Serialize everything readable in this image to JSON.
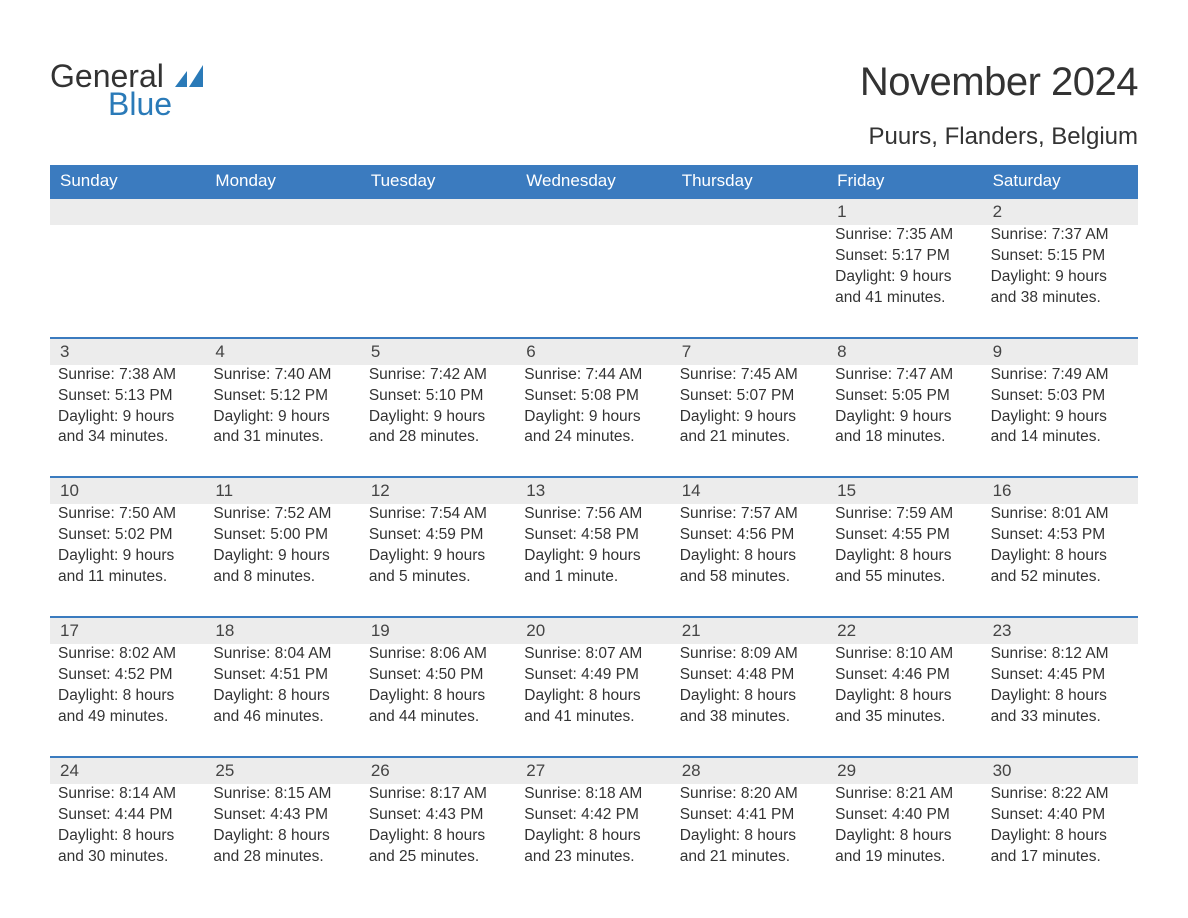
{
  "logo": {
    "text_top": "General",
    "text_bottom": "Blue",
    "icon_color": "#2a7ab8"
  },
  "title": "November 2024",
  "location": "Puurs, Flanders, Belgium",
  "colors": {
    "header_bg": "#3b7bbf",
    "header_text": "#ffffff",
    "daynum_bg": "#ececec",
    "daynum_border": "#3b7bbf",
    "body_text": "#333333",
    "logo_blue": "#2a7ab8",
    "page_bg": "#ffffff"
  },
  "typography": {
    "title_fontsize": 40,
    "location_fontsize": 24,
    "dayheader_fontsize": 17,
    "body_fontsize": 15.5,
    "font_family": "Arial"
  },
  "day_names": [
    "Sunday",
    "Monday",
    "Tuesday",
    "Wednesday",
    "Thursday",
    "Friday",
    "Saturday"
  ],
  "weeks": [
    {
      "numbers": [
        "",
        "",
        "",
        "",
        "",
        "1",
        "2"
      ],
      "cells": [
        null,
        null,
        null,
        null,
        null,
        {
          "sunrise": "Sunrise: 7:35 AM",
          "sunset": "Sunset: 5:17 PM",
          "daylight": "Daylight: 9 hours and 41 minutes."
        },
        {
          "sunrise": "Sunrise: 7:37 AM",
          "sunset": "Sunset: 5:15 PM",
          "daylight": "Daylight: 9 hours and 38 minutes."
        }
      ]
    },
    {
      "numbers": [
        "3",
        "4",
        "5",
        "6",
        "7",
        "8",
        "9"
      ],
      "cells": [
        {
          "sunrise": "Sunrise: 7:38 AM",
          "sunset": "Sunset: 5:13 PM",
          "daylight": "Daylight: 9 hours and 34 minutes."
        },
        {
          "sunrise": "Sunrise: 7:40 AM",
          "sunset": "Sunset: 5:12 PM",
          "daylight": "Daylight: 9 hours and 31 minutes."
        },
        {
          "sunrise": "Sunrise: 7:42 AM",
          "sunset": "Sunset: 5:10 PM",
          "daylight": "Daylight: 9 hours and 28 minutes."
        },
        {
          "sunrise": "Sunrise: 7:44 AM",
          "sunset": "Sunset: 5:08 PM",
          "daylight": "Daylight: 9 hours and 24 minutes."
        },
        {
          "sunrise": "Sunrise: 7:45 AM",
          "sunset": "Sunset: 5:07 PM",
          "daylight": "Daylight: 9 hours and 21 minutes."
        },
        {
          "sunrise": "Sunrise: 7:47 AM",
          "sunset": "Sunset: 5:05 PM",
          "daylight": "Daylight: 9 hours and 18 minutes."
        },
        {
          "sunrise": "Sunrise: 7:49 AM",
          "sunset": "Sunset: 5:03 PM",
          "daylight": "Daylight: 9 hours and 14 minutes."
        }
      ]
    },
    {
      "numbers": [
        "10",
        "11",
        "12",
        "13",
        "14",
        "15",
        "16"
      ],
      "cells": [
        {
          "sunrise": "Sunrise: 7:50 AM",
          "sunset": "Sunset: 5:02 PM",
          "daylight": "Daylight: 9 hours and 11 minutes."
        },
        {
          "sunrise": "Sunrise: 7:52 AM",
          "sunset": "Sunset: 5:00 PM",
          "daylight": "Daylight: 9 hours and 8 minutes."
        },
        {
          "sunrise": "Sunrise: 7:54 AM",
          "sunset": "Sunset: 4:59 PM",
          "daylight": "Daylight: 9 hours and 5 minutes."
        },
        {
          "sunrise": "Sunrise: 7:56 AM",
          "sunset": "Sunset: 4:58 PM",
          "daylight": "Daylight: 9 hours and 1 minute."
        },
        {
          "sunrise": "Sunrise: 7:57 AM",
          "sunset": "Sunset: 4:56 PM",
          "daylight": "Daylight: 8 hours and 58 minutes."
        },
        {
          "sunrise": "Sunrise: 7:59 AM",
          "sunset": "Sunset: 4:55 PM",
          "daylight": "Daylight: 8 hours and 55 minutes."
        },
        {
          "sunrise": "Sunrise: 8:01 AM",
          "sunset": "Sunset: 4:53 PM",
          "daylight": "Daylight: 8 hours and 52 minutes."
        }
      ]
    },
    {
      "numbers": [
        "17",
        "18",
        "19",
        "20",
        "21",
        "22",
        "23"
      ],
      "cells": [
        {
          "sunrise": "Sunrise: 8:02 AM",
          "sunset": "Sunset: 4:52 PM",
          "daylight": "Daylight: 8 hours and 49 minutes."
        },
        {
          "sunrise": "Sunrise: 8:04 AM",
          "sunset": "Sunset: 4:51 PM",
          "daylight": "Daylight: 8 hours and 46 minutes."
        },
        {
          "sunrise": "Sunrise: 8:06 AM",
          "sunset": "Sunset: 4:50 PM",
          "daylight": "Daylight: 8 hours and 44 minutes."
        },
        {
          "sunrise": "Sunrise: 8:07 AM",
          "sunset": "Sunset: 4:49 PM",
          "daylight": "Daylight: 8 hours and 41 minutes."
        },
        {
          "sunrise": "Sunrise: 8:09 AM",
          "sunset": "Sunset: 4:48 PM",
          "daylight": "Daylight: 8 hours and 38 minutes."
        },
        {
          "sunrise": "Sunrise: 8:10 AM",
          "sunset": "Sunset: 4:46 PM",
          "daylight": "Daylight: 8 hours and 35 minutes."
        },
        {
          "sunrise": "Sunrise: 8:12 AM",
          "sunset": "Sunset: 4:45 PM",
          "daylight": "Daylight: 8 hours and 33 minutes."
        }
      ]
    },
    {
      "numbers": [
        "24",
        "25",
        "26",
        "27",
        "28",
        "29",
        "30"
      ],
      "cells": [
        {
          "sunrise": "Sunrise: 8:14 AM",
          "sunset": "Sunset: 4:44 PM",
          "daylight": "Daylight: 8 hours and 30 minutes."
        },
        {
          "sunrise": "Sunrise: 8:15 AM",
          "sunset": "Sunset: 4:43 PM",
          "daylight": "Daylight: 8 hours and 28 minutes."
        },
        {
          "sunrise": "Sunrise: 8:17 AM",
          "sunset": "Sunset: 4:43 PM",
          "daylight": "Daylight: 8 hours and 25 minutes."
        },
        {
          "sunrise": "Sunrise: 8:18 AM",
          "sunset": "Sunset: 4:42 PM",
          "daylight": "Daylight: 8 hours and 23 minutes."
        },
        {
          "sunrise": "Sunrise: 8:20 AM",
          "sunset": "Sunset: 4:41 PM",
          "daylight": "Daylight: 8 hours and 21 minutes."
        },
        {
          "sunrise": "Sunrise: 8:21 AM",
          "sunset": "Sunset: 4:40 PM",
          "daylight": "Daylight: 8 hours and 19 minutes."
        },
        {
          "sunrise": "Sunrise: 8:22 AM",
          "sunset": "Sunset: 4:40 PM",
          "daylight": "Daylight: 8 hours and 17 minutes."
        }
      ]
    }
  ]
}
